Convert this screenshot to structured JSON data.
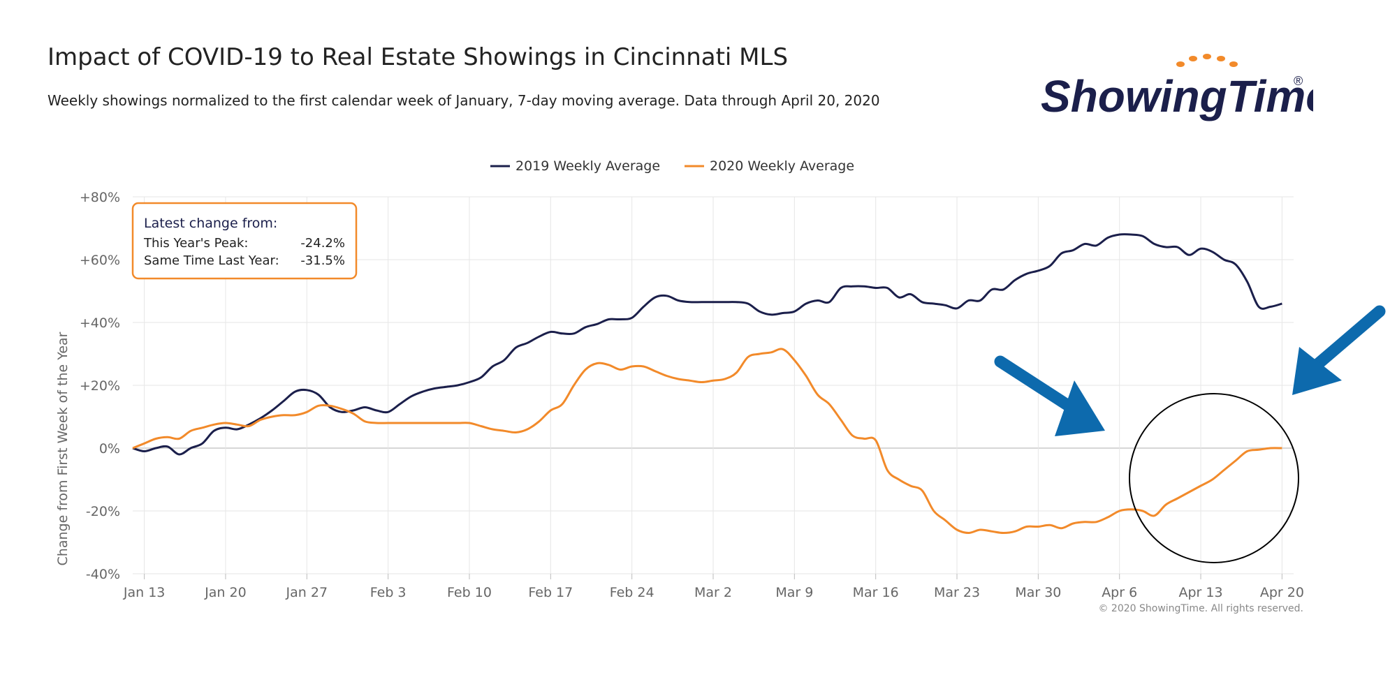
{
  "header": {
    "title": "Impact of COVID-19 to Real Estate Showings in Cincinnati MLS",
    "subtitle": "Weekly showings normalized to the first calendar week of January, 7-day moving average. Data through April 20, 2020"
  },
  "logo": {
    "text": "ShowingTime",
    "registered": "®"
  },
  "infobox": {
    "heading": "Latest change from:",
    "rows": [
      {
        "label": "This Year's Peak:",
        "value": "-24.2%"
      },
      {
        "label": "Same Time Last Year:",
        "value": "-31.5%"
      }
    ]
  },
  "copyright": "© 2020 ShowingTime. All rights reserved.",
  "colors": {
    "s2019": "#1b1f4b",
    "s2020": "#f28a2a",
    "arrow": "#0d6aad",
    "grid": "#e6e6e6",
    "zero": "#c8c8c8",
    "box": "#f28a2a"
  },
  "annotations": {
    "arrows": 2,
    "circle_highlight": "Apr 13 – Apr 20 region of 2020 series"
  },
  "chart_data": {
    "type": "line",
    "title": "Impact of COVID-19 to Real Estate Showings in Cincinnati MLS",
    "ylabel": "Change from First Week of the Year",
    "xlabel": "",
    "ylim": [
      -40,
      80
    ],
    "yticks": [
      -40,
      -20,
      0,
      20,
      40,
      60,
      80
    ],
    "ytick_labels": [
      "-40%",
      "-20%",
      "0%",
      "+20%",
      "+40%",
      "+60%",
      "+80%"
    ],
    "xlim": [
      "Jan 12",
      "Apr 21"
    ],
    "xticks": [
      "Jan 13",
      "Jan 20",
      "Jan 27",
      "Feb 3",
      "Feb 10",
      "Feb 17",
      "Feb 24",
      "Mar 2",
      "Mar 9",
      "Mar 16",
      "Mar 23",
      "Mar 30",
      "Apr 6",
      "Apr 13",
      "Apr 20"
    ],
    "grid": true,
    "legend": "top-center",
    "series": [
      {
        "name": "2019 Weekly Average",
        "x": [
          "Jan 12",
          "Jan 13",
          "Jan 14",
          "Jan 15",
          "Jan 16",
          "Jan 17",
          "Jan 18",
          "Jan 19",
          "Jan 20",
          "Jan 21",
          "Jan 22",
          "Jan 23",
          "Jan 24",
          "Jan 25",
          "Jan 26",
          "Jan 27",
          "Jan 28",
          "Jan 29",
          "Jan 30",
          "Jan 31",
          "Feb 1",
          "Feb 2",
          "Feb 3",
          "Feb 4",
          "Feb 5",
          "Feb 6",
          "Feb 7",
          "Feb 8",
          "Feb 9",
          "Feb 10",
          "Feb 11",
          "Feb 12",
          "Feb 13",
          "Feb 14",
          "Feb 15",
          "Feb 16",
          "Feb 17",
          "Feb 18",
          "Feb 19",
          "Feb 20",
          "Feb 21",
          "Feb 22",
          "Feb 23",
          "Feb 24",
          "Feb 25",
          "Feb 26",
          "Feb 27",
          "Feb 28",
          "Feb 29",
          "Mar 1",
          "Mar 2",
          "Mar 3",
          "Mar 4",
          "Mar 5",
          "Mar 6",
          "Mar 7",
          "Mar 8",
          "Mar 9",
          "Mar 10",
          "Mar 11",
          "Mar 12",
          "Mar 13",
          "Mar 14",
          "Mar 15",
          "Mar 16",
          "Mar 17",
          "Mar 18",
          "Mar 19",
          "Mar 20",
          "Mar 21",
          "Mar 22",
          "Mar 23",
          "Mar 24",
          "Mar 25",
          "Mar 26",
          "Mar 27",
          "Mar 28",
          "Mar 29",
          "Mar 30",
          "Mar 31",
          "Apr 1",
          "Apr 2",
          "Apr 3",
          "Apr 4",
          "Apr 5",
          "Apr 6",
          "Apr 7",
          "Apr 8",
          "Apr 9",
          "Apr 10",
          "Apr 11",
          "Apr 12",
          "Apr 13",
          "Apr 14",
          "Apr 15",
          "Apr 16",
          "Apr 17",
          "Apr 18",
          "Apr 19",
          "Apr 20"
        ],
        "y": [
          0,
          -1,
          0,
          0.5,
          -2,
          0,
          1.5,
          5.5,
          6.5,
          6,
          7.5,
          9.5,
          12,
          15,
          18,
          18.5,
          17,
          13,
          11.5,
          12,
          13,
          12,
          11.5,
          14,
          16.5,
          18,
          19,
          19.5,
          20,
          21,
          22.5,
          26,
          28,
          32,
          33.5,
          35.5,
          37,
          36.5,
          36.5,
          38.5,
          39.5,
          41,
          41,
          41.5,
          45,
          48,
          48.5,
          47,
          46.5,
          46.5,
          46.5,
          46.5,
          46.5,
          46,
          43.5,
          42.5,
          43,
          43.5,
          46,
          47,
          46.5,
          51,
          51.5,
          51.5,
          51,
          51,
          48,
          49,
          46.5,
          46,
          45.5,
          44.5,
          47,
          47,
          50.5,
          50.5,
          53.5,
          55.5,
          56.5,
          58,
          62,
          63,
          65,
          64.5,
          67,
          68,
          68,
          67.5,
          65,
          64,
          64,
          61.5,
          63.5,
          62.5,
          60,
          58.5,
          53,
          45,
          45,
          46
        ]
      },
      {
        "name": "2020 Weekly Average",
        "x": [
          "Jan 12",
          "Jan 13",
          "Jan 14",
          "Jan 15",
          "Jan 16",
          "Jan 17",
          "Jan 18",
          "Jan 19",
          "Jan 20",
          "Jan 21",
          "Jan 22",
          "Jan 23",
          "Jan 24",
          "Jan 25",
          "Jan 26",
          "Jan 27",
          "Jan 28",
          "Jan 29",
          "Jan 30",
          "Jan 31",
          "Feb 1",
          "Feb 2",
          "Feb 3",
          "Feb 4",
          "Feb 5",
          "Feb 6",
          "Feb 7",
          "Feb 8",
          "Feb 9",
          "Feb 10",
          "Feb 11",
          "Feb 12",
          "Feb 13",
          "Feb 14",
          "Feb 15",
          "Feb 16",
          "Feb 17",
          "Feb 18",
          "Feb 19",
          "Feb 20",
          "Feb 21",
          "Feb 22",
          "Feb 23",
          "Feb 24",
          "Feb 25",
          "Feb 26",
          "Feb 27",
          "Feb 28",
          "Feb 29",
          "Mar 1",
          "Mar 2",
          "Mar 3",
          "Mar 4",
          "Mar 5",
          "Mar 6",
          "Mar 7",
          "Mar 8",
          "Mar 9",
          "Mar 10",
          "Mar 11",
          "Mar 12",
          "Mar 13",
          "Mar 14",
          "Mar 15",
          "Mar 16",
          "Mar 17",
          "Mar 18",
          "Mar 19",
          "Mar 20",
          "Mar 21",
          "Mar 22",
          "Mar 23",
          "Mar 24",
          "Mar 25",
          "Mar 26",
          "Mar 27",
          "Mar 28",
          "Mar 29",
          "Mar 30",
          "Mar 31",
          "Apr 1",
          "Apr 2",
          "Apr 3",
          "Apr 4",
          "Apr 5",
          "Apr 6",
          "Apr 7",
          "Apr 8",
          "Apr 9",
          "Apr 10",
          "Apr 11",
          "Apr 12",
          "Apr 13",
          "Apr 14",
          "Apr 15",
          "Apr 16",
          "Apr 17",
          "Apr 18",
          "Apr 19",
          "Apr 20"
        ],
        "y": [
          0,
          1.5,
          3,
          3.5,
          3,
          5.5,
          6.5,
          7.5,
          8,
          7.5,
          7,
          9,
          10,
          10.5,
          10.5,
          11.5,
          13.5,
          13.5,
          12.5,
          11,
          8.5,
          8,
          8,
          8,
          8,
          8,
          8,
          8,
          8,
          8,
          7,
          6,
          5.5,
          5,
          6,
          8.5,
          12,
          14,
          20,
          25,
          27,
          26.5,
          25,
          26,
          26,
          24.5,
          23,
          22,
          21.5,
          21,
          21.5,
          22,
          24,
          29,
          30,
          30.5,
          31.5,
          28,
          23,
          17,
          14,
          9,
          4,
          3,
          2.5,
          -7,
          -10,
          -12,
          -13.5,
          -20,
          -23,
          -26,
          -27,
          -26,
          -26.5,
          -27,
          -26.5,
          -25,
          -25,
          -24.5,
          -25.5,
          -24,
          -23.5,
          -23.5,
          -22,
          -20,
          -19.5,
          -20,
          -21.5,
          -18,
          -16,
          -14,
          -12,
          -10,
          -7,
          -4,
          -1,
          -0.5,
          0,
          0
        ]
      }
    ]
  }
}
